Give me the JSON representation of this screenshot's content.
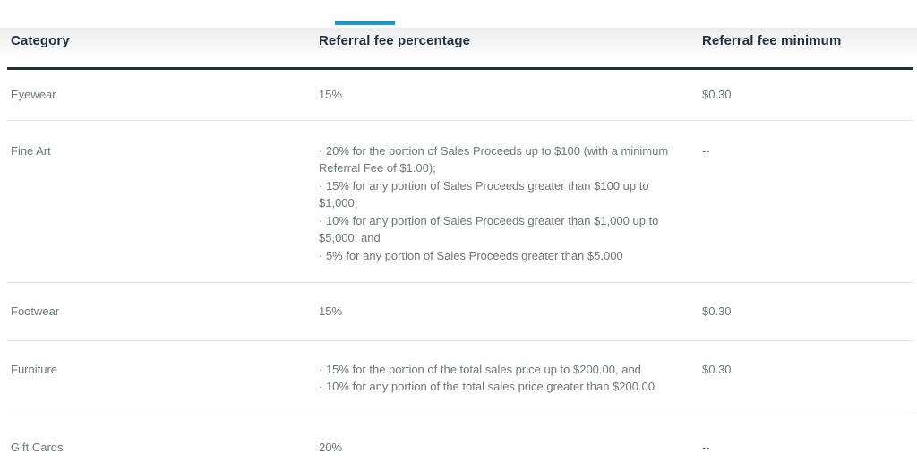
{
  "tab_bar": {
    "active_indicator_color": "#149ade"
  },
  "fees_table": {
    "headers": [
      "Category",
      "Referral fee percentage",
      "Referral fee minimum"
    ],
    "rows": [
      {
        "category": "Eyewear",
        "percentage": "15%",
        "minimum": "$0.30"
      },
      {
        "category": "Fine Art",
        "percentage": [
          "· 20% for the portion of Sales Proceeds up to $100 (with a minimum",
          "Referral Fee of $1.00);",
          "· 15% for any portion of Sales Proceeds greater than $100 up to",
          "$1,000;",
          "· 10% for any portion of Sales Proceeds greater than $1,000 up to",
          "$5,000; and",
          "· 5% for any portion of Sales Proceeds greater than $5,000"
        ],
        "minimum": "--"
      },
      {
        "category": "Footwear",
        "percentage": "15%",
        "minimum": "$0.30"
      },
      {
        "category": "Furniture",
        "percentage": [
          "· 15% for the portion of the total sales price up to $200.00, and",
          "· 10% for any portion of the total sales price greater than $200.00"
        ],
        "minimum": "$0.30"
      },
      {
        "category": "Gift Cards",
        "percentage": "20%",
        "minimum": "--"
      }
    ]
  },
  "colors": {
    "header_text": "#232f3e",
    "header_border": "#232f3e",
    "body_text": "#6e7676",
    "row_divider": "#e3e3e3",
    "accent_blue": "#149ade"
  }
}
